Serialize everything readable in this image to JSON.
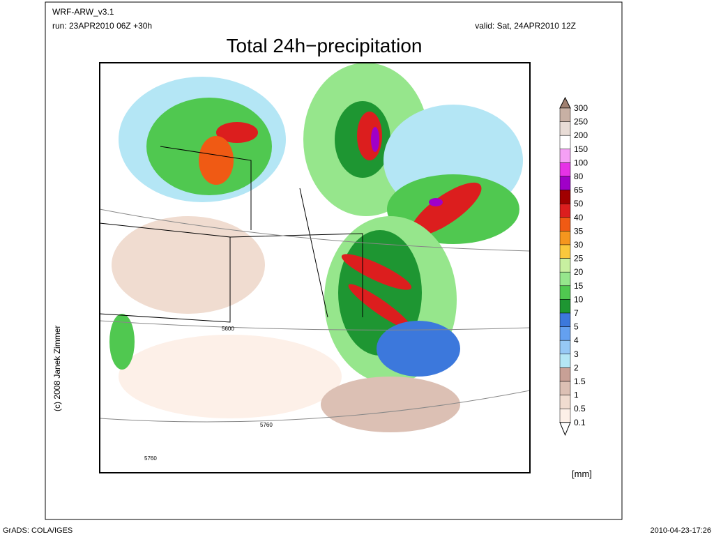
{
  "header": {
    "model": "WRF-ARW_v3.1",
    "run": "run: 23APR2010 06Z +30h",
    "valid": "valid: Sat, 24APR2010 12Z",
    "title": "Total 24h−precipitation"
  },
  "copyright": "(c) 2008 Janek Zimmer",
  "contour_labels": [
    "5600",
    "5760",
    "5760"
  ],
  "colorbar": {
    "unit": "[mm]",
    "labels": [
      300,
      250,
      200,
      150,
      100,
      80,
      65,
      50,
      40,
      35,
      30,
      25,
      20,
      15,
      10,
      7,
      5,
      4,
      3,
      2,
      1.5,
      1,
      0.5,
      0.1
    ],
    "colors": [
      "#a08070",
      "#c8b0a4",
      "#e8dcd6",
      "#ffffff",
      "#f5a0f5",
      "#e632e6",
      "#a000c8",
      "#a00000",
      "#dc1e1e",
      "#f05a14",
      "#f5961e",
      "#fac83c",
      "#c8f0a0",
      "#96e68c",
      "#50c850",
      "#1e9632",
      "#3c78dc",
      "#64a0f0",
      "#96c8f5",
      "#b4e6f5",
      "#c8a096",
      "#dcc0b4",
      "#f0dcd0",
      "#fdf0e8",
      "#ffffff"
    ]
  },
  "footer": {
    "left": "GrADS: COLA/IGES",
    "right": "2010-04-23-17:26"
  }
}
